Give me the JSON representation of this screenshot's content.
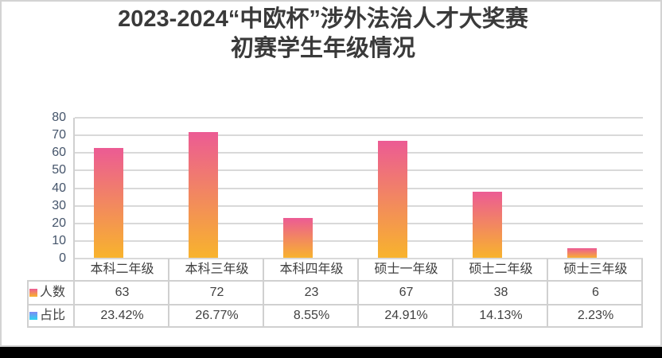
{
  "title": {
    "line1": "2023-2024“中欧杯”涉外法治人才大奖赛",
    "line2": "初赛学生年级情况"
  },
  "chart_data": {
    "type": "bar",
    "title": "2023-2024“中欧杯”涉外法治人才大奖赛初赛学生年级情况",
    "categories": [
      "本科二年级",
      "本科三年级",
      "本科四年级",
      "硕士一年级",
      "硕士二年级",
      "硕士三年级"
    ],
    "series": [
      {
        "name": "人数",
        "type": "bar",
        "values": [
          63,
          72,
          23,
          67,
          38,
          6
        ],
        "value_labels": [
          "63",
          "72",
          "23",
          "67",
          "38",
          "6"
        ]
      },
      {
        "name": "占比",
        "type": "table-only",
        "values": [
          23.42,
          26.77,
          8.55,
          24.91,
          14.13,
          2.23
        ],
        "value_labels": [
          "23.42%",
          "26.77%",
          "8.55%",
          "24.91%",
          "14.13%",
          "2.23%"
        ]
      }
    ],
    "xlabel": "",
    "ylabel": "",
    "ylim": [
      0,
      80
    ],
    "ytick_labels": [
      "80",
      "70",
      "60",
      "50",
      "40",
      "30",
      "20",
      "10",
      "0"
    ],
    "grid": true,
    "legend_position": "data-table-keys"
  },
  "colors": {
    "bar_gradient_top": "#ec5b94",
    "bar_gradient_bottom": "#f8b42c",
    "ratio_key_top": "#7f8af4",
    "ratio_key_bottom": "#2fd4f1",
    "axis_label": "#44546a",
    "table_text": "#404040",
    "title_text": "#3a3a3a",
    "gridline": "#d9d9d9",
    "table_border": "#d0d0d0",
    "frame_border": "#d3d3d3",
    "bottom_strip": "#000000"
  }
}
